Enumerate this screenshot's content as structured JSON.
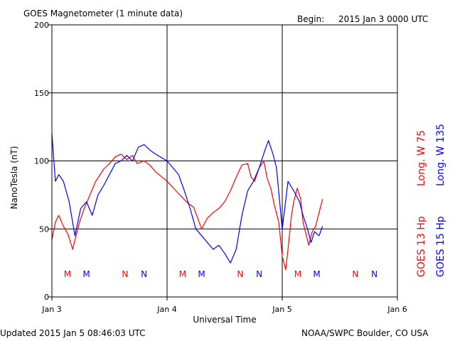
{
  "header": {
    "title": "GOES Magnetometer (1 minute data)",
    "begin_label": "Begin:",
    "begin_value": "2015 Jan 3 0000 UTC"
  },
  "footer": {
    "updated": "Updated 2015 Jan  5 08:46:03 UTC",
    "credit": "NOAA/SWPC Boulder, CO USA"
  },
  "colors": {
    "goes13": "#ff0000",
    "goes15": "#0000ff",
    "axis": "#000000"
  },
  "chart_data": {
    "type": "line",
    "title": "GOES Magnetometer (1 minute data)",
    "xlabel": "Universal Time",
    "ylabel": "NanoTesla (nT)",
    "ylim": [
      0,
      200
    ],
    "xlim_days": [
      0,
      3
    ],
    "y_ticks": [
      0,
      50,
      100,
      150,
      200
    ],
    "x_ticks": [
      {
        "day": 0,
        "label": "Jan 3"
      },
      {
        "day": 1,
        "label": "Jan 4"
      },
      {
        "day": 2,
        "label": "Jan 5"
      },
      {
        "day": 3,
        "label": "Jan 6"
      }
    ],
    "grid": true,
    "legend_placement": "right",
    "series": [
      {
        "name": "GOES 13 Hp",
        "label_main": "GOES 13 Hp",
        "label_long": "Long. W 75",
        "color": "#ff0000",
        "x": [
          0,
          0.03,
          0.06,
          0.1,
          0.14,
          0.18,
          0.2,
          0.24,
          0.28,
          0.33,
          0.38,
          0.45,
          0.5,
          0.55,
          0.6,
          0.65,
          0.7,
          0.74,
          0.8,
          0.85,
          0.9,
          1.0,
          1.1,
          1.18,
          1.23,
          1.27,
          1.3,
          1.35,
          1.4,
          1.45,
          1.5,
          1.55,
          1.6,
          1.65,
          1.7,
          1.73,
          1.76,
          1.8,
          1.84,
          1.87,
          1.9,
          1.93,
          1.97,
          2.0,
          2.03,
          2.05,
          2.08,
          2.1,
          2.13,
          2.16,
          2.18,
          2.21,
          2.23,
          2.26,
          2.29,
          2.32,
          2.35
        ],
        "values": [
          42,
          55,
          60,
          52,
          46,
          35,
          42,
          55,
          65,
          75,
          85,
          94,
          98,
          103,
          105,
          101,
          104,
          98,
          100,
          97,
          92,
          85,
          76,
          69,
          66,
          57,
          50,
          58,
          62,
          65,
          70,
          78,
          88,
          97,
          98,
          88,
          85,
          95,
          100,
          87,
          80,
          68,
          55,
          30,
          20,
          35,
          60,
          70,
          80,
          72,
          55,
          45,
          38,
          48,
          52,
          62,
          72
        ]
      },
      {
        "name": "GOES 15 Hp",
        "label_main": "GOES 15 Hp",
        "label_long": "Long. W 135",
        "color": "#0000ff",
        "x": [
          0,
          0.03,
          0.06,
          0.1,
          0.15,
          0.2,
          0.25,
          0.3,
          0.35,
          0.4,
          0.45,
          0.5,
          0.55,
          0.6,
          0.65,
          0.7,
          0.75,
          0.8,
          0.85,
          0.9,
          1.0,
          1.1,
          1.15,
          1.2,
          1.25,
          1.3,
          1.35,
          1.4,
          1.45,
          1.5,
          1.55,
          1.6,
          1.65,
          1.7,
          1.75,
          1.8,
          1.85,
          1.88,
          1.92,
          1.95,
          2.0,
          2.05,
          2.1,
          2.15,
          2.18,
          2.22,
          2.25,
          2.28,
          2.32,
          2.35
        ],
        "values": [
          120,
          85,
          90,
          85,
          70,
          45,
          65,
          70,
          60,
          75,
          82,
          90,
          98,
          100,
          104,
          100,
          110,
          112,
          108,
          105,
          100,
          90,
          78,
          65,
          50,
          45,
          40,
          35,
          38,
          32,
          25,
          35,
          60,
          78,
          85,
          95,
          108,
          115,
          105,
          95,
          50,
          85,
          78,
          70,
          60,
          50,
          40,
          48,
          45,
          52
        ]
      }
    ],
    "mn_markers": [
      {
        "letter": "M",
        "series": "GOES 13 Hp",
        "day": 0.135
      },
      {
        "letter": "M",
        "series": "GOES 15 Hp",
        "day": 0.3
      },
      {
        "letter": "N",
        "series": "GOES 13 Hp",
        "day": 0.635
      },
      {
        "letter": "N",
        "series": "GOES 15 Hp",
        "day": 0.8
      },
      {
        "letter": "M",
        "series": "GOES 13 Hp",
        "day": 1.135
      },
      {
        "letter": "M",
        "series": "GOES 15 Hp",
        "day": 1.3
      },
      {
        "letter": "N",
        "series": "GOES 13 Hp",
        "day": 1.635
      },
      {
        "letter": "N",
        "series": "GOES 15 Hp",
        "day": 1.8
      },
      {
        "letter": "M",
        "series": "GOES 13 Hp",
        "day": 2.135
      },
      {
        "letter": "M",
        "series": "GOES 15 Hp",
        "day": 2.3
      },
      {
        "letter": "N",
        "series": "GOES 13 Hp",
        "day": 2.635
      },
      {
        "letter": "N",
        "series": "GOES 15 Hp",
        "day": 2.8
      }
    ]
  }
}
